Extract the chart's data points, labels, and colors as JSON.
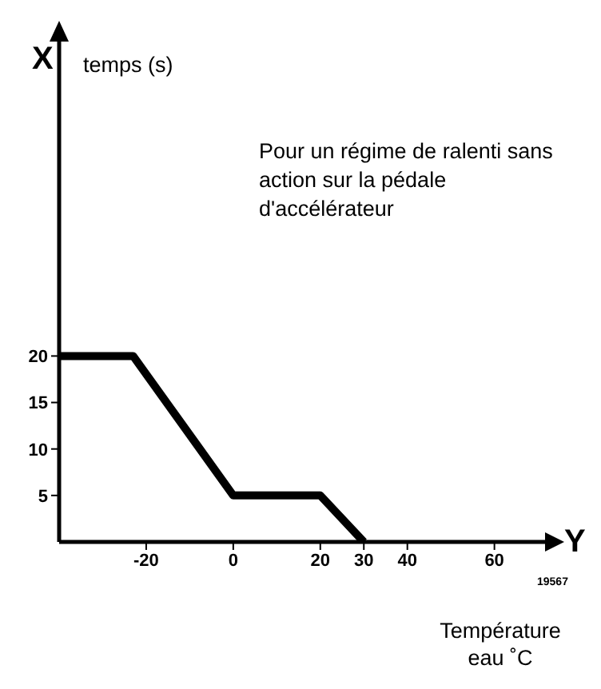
{
  "chart_data": {
    "type": "line",
    "xlabel": "Température eau ˚C",
    "ylabel": "temps (s)",
    "annotations": [
      "X",
      "Y",
      "Pour un régime de ralenti sans action sur la pédale d'accélérateur",
      "19567"
    ],
    "x": [
      -40,
      -23,
      0,
      20,
      30
    ],
    "series": [
      {
        "color": "#000000",
        "values": [
          20,
          20,
          5,
          5,
          0
        ]
      }
    ],
    "xlim": [
      -40,
      72
    ],
    "xticks": [
      -20,
      0,
      20,
      30,
      40,
      60
    ],
    "ylim": [
      0,
      54
    ],
    "yticks": [
      5,
      10,
      15,
      20
    ],
    "marker": "none",
    "line_style": "solid"
  }
}
